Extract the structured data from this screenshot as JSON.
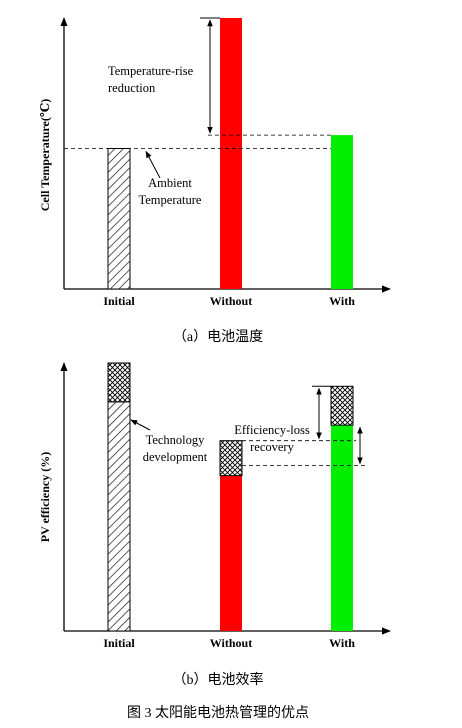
{
  "figure_caption": "图 3 太阳能电池热管理的优点",
  "colors": {
    "without": "#ff0000",
    "with": "#00ee00",
    "axis": "#000000"
  },
  "chart_data": [
    {
      "type": "bar",
      "caption": "（a）电池温度",
      "ylabel": "Cell Temperature(℃)",
      "xlabel": "",
      "categories": [
        "Initial",
        "Without",
        "With"
      ],
      "values": [
        42,
        81,
        46
      ],
      "ylim": [
        0,
        81
      ],
      "grid": false,
      "legend": "none",
      "annotations": [
        {
          "text_lines": [
            "Temperature-rise",
            "reduction"
          ]
        },
        {
          "text_lines": [
            "Ambient",
            "Temperature"
          ]
        }
      ]
    },
    {
      "type": "bar",
      "caption": "（b）电池效率",
      "ylabel": "PV efficiency (%)",
      "xlabel": "",
      "categories": [
        "Initial",
        "Without",
        "With"
      ],
      "values": [
        59,
        40,
        53
      ],
      "technology_gain": [
        10,
        9,
        10
      ],
      "ylim": [
        0,
        69
      ],
      "grid": false,
      "legend": "none",
      "annotations": [
        {
          "text_lines": [
            "Technology",
            "development"
          ]
        },
        {
          "text_lines": [
            "Efficiency-loss",
            "recovery"
          ]
        }
      ]
    }
  ]
}
